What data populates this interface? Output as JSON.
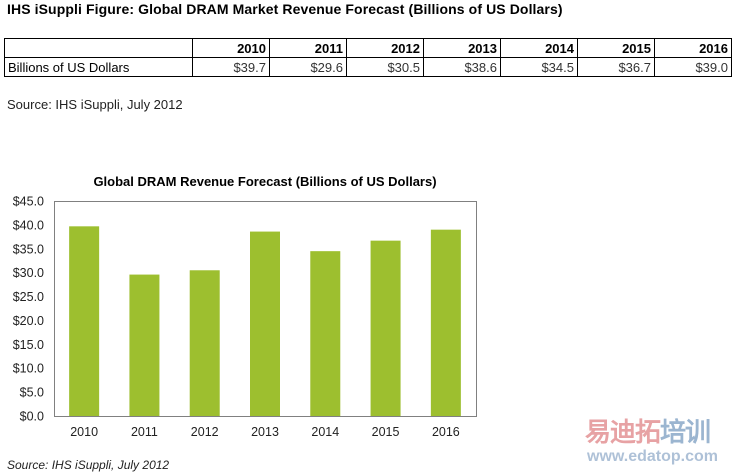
{
  "figure_title": "IHS iSuppli Figure: Global DRAM Market Revenue Forecast (Billions of US Dollars)",
  "table": {
    "header": [
      "",
      "2010",
      "2011",
      "2012",
      "2013",
      "2014",
      "2015",
      "2016"
    ],
    "row_label": "Billions of US Dollars",
    "row_values": [
      "$39.7",
      "$29.6",
      "$30.5",
      "$38.6",
      "$34.5",
      "$36.7",
      "$39.0"
    ]
  },
  "source_top": "Source: IHS iSuppli, July 2012",
  "source_bottom": "Source: IHS iSuppli, July 2012",
  "watermark": {
    "text_cn": "易迪拓培训",
    "url": "www.edatop.com"
  },
  "chart_data": {
    "type": "bar",
    "title": "Global DRAM Revenue Forecast (Billions of US Dollars)",
    "xlabel": "",
    "ylabel": "",
    "categories": [
      "2010",
      "2011",
      "2012",
      "2013",
      "2014",
      "2015",
      "2016"
    ],
    "values": [
      39.7,
      29.6,
      30.5,
      38.6,
      34.5,
      36.7,
      39.0
    ],
    "ylim": [
      0,
      45
    ],
    "yticks": [
      0,
      5,
      10,
      15,
      20,
      25,
      30,
      35,
      40,
      45
    ],
    "ytick_labels": [
      "$0.0",
      "$5.0",
      "$10.0",
      "$15.0",
      "$20.0",
      "$25.0",
      "$30.0",
      "$35.0",
      "$40.0",
      "$45.0"
    ],
    "grid": false,
    "legend": "none",
    "bar_color": "#9dbf2f",
    "axis_color": "#808080"
  }
}
